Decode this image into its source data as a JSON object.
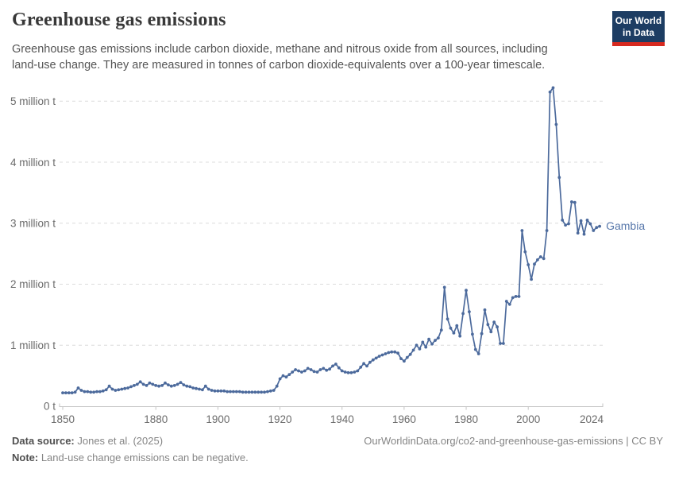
{
  "header": {
    "title": "Greenhouse gas emissions",
    "subtitle": "Greenhouse gas emissions include carbon dioxide, methane and nitrous oxide from all sources, including land-use change. They are measured in tonnes of carbon dioxide-equivalents over a 100-year timescale."
  },
  "logo": {
    "line1": "Our World",
    "line2": "in Data",
    "bg": "#1d3d63",
    "stripe": "#d7291f"
  },
  "chart_data": {
    "type": "line",
    "title": "Greenhouse gas emissions",
    "entity_label": "Gambia",
    "unit": "tonnes of CO2-equivalents",
    "x_years": {
      "start": 1850,
      "end": 2023,
      "step": 1
    },
    "values": [
      0.22,
      0.22,
      0.22,
      0.22,
      0.23,
      0.3,
      0.26,
      0.24,
      0.24,
      0.23,
      0.23,
      0.24,
      0.24,
      0.25,
      0.27,
      0.33,
      0.28,
      0.26,
      0.27,
      0.28,
      0.29,
      0.3,
      0.32,
      0.34,
      0.36,
      0.4,
      0.36,
      0.34,
      0.38,
      0.36,
      0.34,
      0.33,
      0.34,
      0.38,
      0.35,
      0.33,
      0.34,
      0.36,
      0.39,
      0.35,
      0.33,
      0.32,
      0.3,
      0.29,
      0.28,
      0.27,
      0.33,
      0.28,
      0.26,
      0.25,
      0.25,
      0.25,
      0.25,
      0.24,
      0.24,
      0.24,
      0.24,
      0.24,
      0.23,
      0.23,
      0.23,
      0.23,
      0.23,
      0.23,
      0.23,
      0.23,
      0.24,
      0.25,
      0.26,
      0.33,
      0.45,
      0.5,
      0.48,
      0.52,
      0.56,
      0.6,
      0.58,
      0.56,
      0.58,
      0.62,
      0.6,
      0.57,
      0.56,
      0.6,
      0.62,
      0.59,
      0.61,
      0.66,
      0.69,
      0.63,
      0.58,
      0.56,
      0.55,
      0.55,
      0.56,
      0.58,
      0.64,
      0.7,
      0.66,
      0.72,
      0.76,
      0.79,
      0.82,
      0.84,
      0.86,
      0.88,
      0.89,
      0.89,
      0.87,
      0.78,
      0.74,
      0.8,
      0.85,
      0.92,
      1.0,
      0.94,
      1.05,
      0.97,
      1.1,
      1.02,
      1.08,
      1.12,
      1.25,
      1.95,
      1.43,
      1.28,
      1.2,
      1.32,
      1.15,
      1.52,
      1.9,
      1.55,
      1.18,
      0.93,
      0.86,
      1.19,
      1.58,
      1.34,
      1.22,
      1.38,
      1.3,
      1.03,
      1.03,
      1.72,
      1.67,
      1.78,
      1.8,
      1.8,
      2.88,
      2.53,
      2.32,
      2.08,
      2.33,
      2.4,
      2.45,
      2.42,
      2.88,
      5.15,
      5.22,
      4.62,
      3.75,
      3.05,
      2.97,
      2.99,
      3.35,
      3.34,
      2.84,
      3.04,
      2.82,
      3.05,
      2.99,
      2.88,
      2.93,
      2.95
    ],
    "xticks": [
      {
        "year": 1850,
        "label": "1850"
      },
      {
        "year": 1880,
        "label": "1880"
      },
      {
        "year": 1900,
        "label": "1900"
      },
      {
        "year": 1920,
        "label": "1920"
      },
      {
        "year": 1940,
        "label": "1940"
      },
      {
        "year": 1960,
        "label": "1960"
      },
      {
        "year": 1980,
        "label": "1980"
      },
      {
        "year": 2000,
        "label": "2000"
      },
      {
        "year": 2024,
        "label": "2024"
      }
    ],
    "yticks": [
      {
        "value": 0,
        "label": "0 t"
      },
      {
        "value": 1,
        "label": "1 million t"
      },
      {
        "value": 2,
        "label": "2 million t"
      },
      {
        "value": 3,
        "label": "3 million t"
      },
      {
        "value": 4,
        "label": "4 million t"
      },
      {
        "value": 5,
        "label": "5 million t"
      }
    ],
    "xlim": [
      1850,
      2024
    ],
    "ylim": [
      0,
      5.25
    ],
    "grid": "horizontal-dashed",
    "legend_position": "end-of-line",
    "line_color": "#4c6a9c",
    "entity_label_color": "#5878ab",
    "grid_color": "#dcdcdc",
    "axis_color": "#c4c4c4",
    "tick_label_color": "#6b6b6b"
  },
  "footer": {
    "data_source_label": "Data source:",
    "data_source_value": " Jones et al. (2025)",
    "note_label": "Note:",
    "note_value": " Land-use change emissions can be negative.",
    "attribution": "OurWorldinData.org/co2-and-greenhouse-gas-emissions | CC BY"
  }
}
